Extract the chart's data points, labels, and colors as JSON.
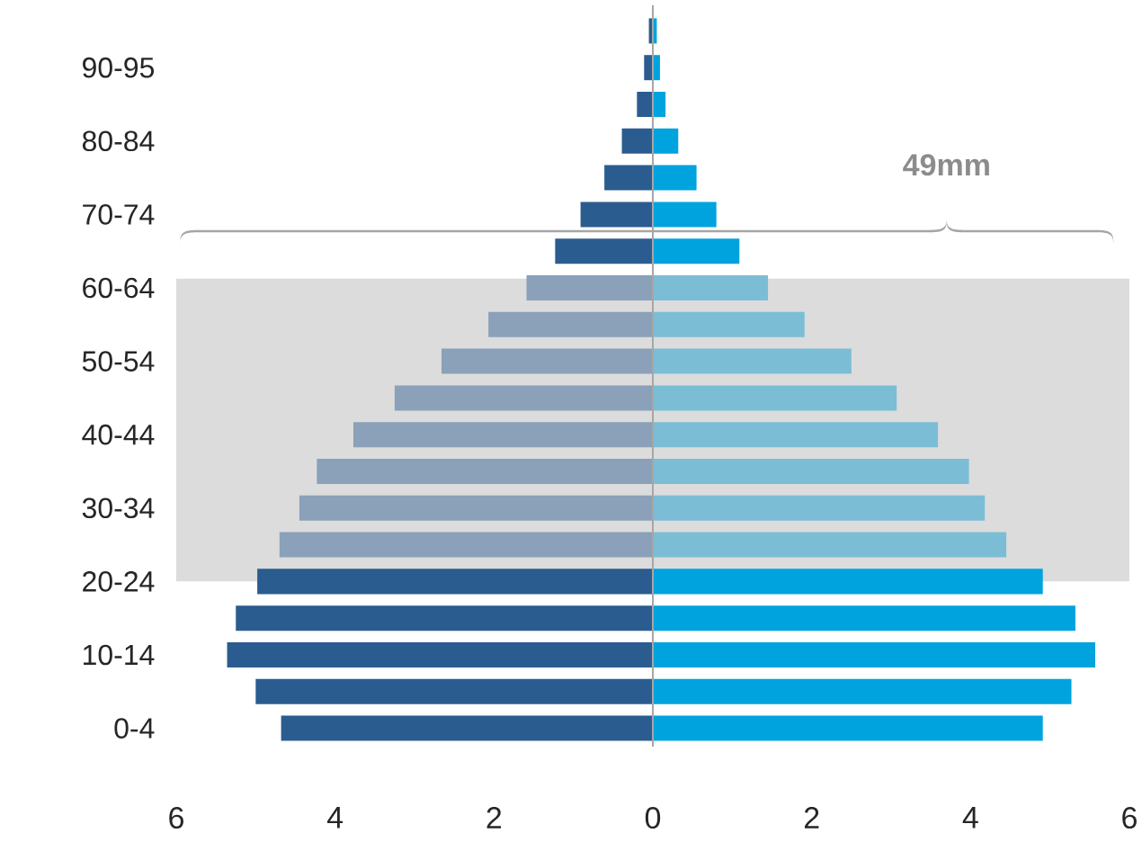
{
  "chart_data": {
    "type": "bar",
    "orientation": "horizontal",
    "stacked": true,
    "categories": [
      null,
      "90-95",
      null,
      "80-84",
      null,
      "70-74",
      null,
      "60-64",
      null,
      "50-54",
      null,
      "40-44",
      null,
      "30-34",
      null,
      "20-24",
      null,
      "10-14",
      null,
      "0-4"
    ],
    "series": [
      {
        "values": [
          -0.05,
          -0.11,
          -0.2,
          -0.39,
          -0.61,
          -0.91,
          -1.23,
          -1.59,
          -2.07,
          -2.66,
          -3.25,
          -3.77,
          -4.23,
          -4.45,
          -4.7,
          -4.98,
          -5.25,
          -5.36,
          -5.0,
          -4.68
        ],
        "colors": [
          "#2b5c8f",
          "#2b5c8f",
          "#2b5c8f",
          "#2b5c8f",
          "#2b5c8f",
          "#2b5c8f",
          "#2b5c8f",
          "#8ba0b9",
          "#8ba0b9",
          "#8ba0b9",
          "#8ba0b9",
          "#8ba0b9",
          "#8ba0b9",
          "#8ba0b9",
          "#8ba0b9",
          "#2b5c8f",
          "#2b5c8f",
          "#2b5c8f",
          "#2b5c8f",
          "#2b5c8f"
        ]
      },
      {
        "values": [
          0.05,
          0.09,
          0.16,
          0.32,
          0.55,
          0.8,
          1.09,
          1.45,
          1.91,
          2.5,
          3.07,
          3.59,
          3.98,
          4.18,
          4.45,
          4.91,
          5.32,
          5.57,
          5.27,
          4.91
        ],
        "colors": [
          "#00a3dd",
          "#00a3dd",
          "#00a3dd",
          "#00a3dd",
          "#00a3dd",
          "#00a3dd",
          "#00a3dd",
          "#7cbdd6",
          "#7cbdd6",
          "#7cbdd6",
          "#7cbdd6",
          "#7cbdd6",
          "#7cbdd6",
          "#7cbdd6",
          "#7cbdd6",
          "#00a3dd",
          "#00a3dd",
          "#00a3dd",
          "#00a3dd",
          "#00a3dd"
        ]
      }
    ],
    "xlim": [
      -6,
      6
    ],
    "xticks": [
      {
        "value": -6,
        "label": "6"
      },
      {
        "value": -4,
        "label": "4"
      },
      {
        "value": -2,
        "label": "2"
      },
      0,
      2,
      4,
      6
    ],
    "bands": [
      {
        "axis": "y",
        "from": "60-64",
        "to": "20-24",
        "color": "#dcdcdc"
      }
    ],
    "ref_lines": [
      {
        "axis": "x",
        "value": 0,
        "color": "#a6a6a6"
      }
    ],
    "annotations": [
      "49mm"
    ]
  }
}
